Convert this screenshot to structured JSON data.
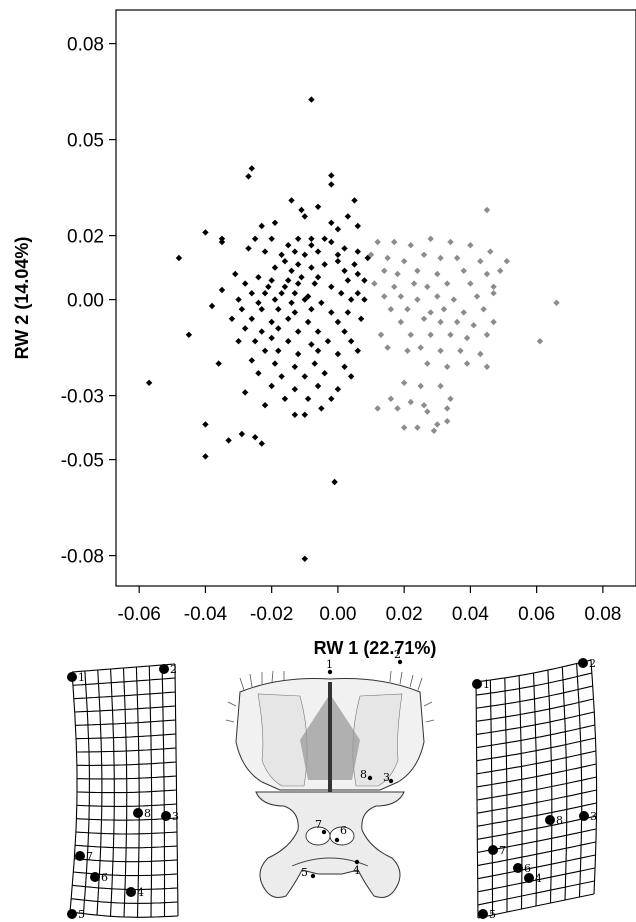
{
  "chart_data": {
    "type": "scatter",
    "xlabel": "RW 1 (22.71%)",
    "ylabel": "RW 2 (14.04%)",
    "xlim": [
      -0.067,
      0.09
    ],
    "ylim": [
      -0.0895,
      0.0905
    ],
    "x_ticks": [
      -0.06,
      -0.04,
      -0.02,
      0.0,
      0.02,
      0.04,
      0.06,
      0.08
    ],
    "x_tick_labels": [
      "-0.06",
      "-0.04",
      "-0.02",
      "0.00",
      "0.02",
      "0.04",
      "0.06",
      "0.08"
    ],
    "y_ticks": [
      0.08,
      0.05,
      0.02,
      0.0,
      -0.03,
      -0.05,
      -0.08
    ],
    "y_tick_labels": [
      "0.08",
      "0.05",
      "0.02",
      "0.00",
      "-0.03",
      "-0.05",
      "-0.08"
    ],
    "grid": false,
    "series": [
      {
        "color": "#000000",
        "marker": "diamond",
        "points": [
          [
            -0.008,
            0.0625
          ],
          [
            -0.026,
            0.041
          ],
          [
            -0.027,
            0.0385
          ],
          [
            -0.002,
            0.0388
          ],
          [
            -0.002,
            0.036
          ],
          [
            -0.014,
            0.031
          ],
          [
            -0.011,
            0.028
          ],
          [
            -0.006,
            0.029
          ],
          [
            -0.01,
            0.026
          ],
          [
            -0.019,
            0.024
          ],
          [
            -0.023,
            0.023
          ],
          [
            -0.002,
            0.024
          ],
          [
            0.0,
            0.022
          ],
          [
            0.005,
            0.031
          ],
          [
            0.003,
            0.026
          ],
          [
            0.006,
            0.023
          ],
          [
            -0.04,
            0.021
          ],
          [
            -0.035,
            0.019
          ],
          [
            -0.035,
            0.018
          ],
          [
            -0.025,
            0.019
          ],
          [
            -0.02,
            0.019
          ],
          [
            -0.012,
            0.019
          ],
          [
            -0.008,
            0.019
          ],
          [
            -0.004,
            0.019
          ],
          [
            -0.015,
            0.017
          ],
          [
            -0.008,
            0.017
          ],
          [
            -0.002,
            0.018
          ],
          [
            0.002,
            0.016
          ],
          [
            0.006,
            0.015
          ],
          [
            -0.027,
            0.016
          ],
          [
            -0.022,
            0.015
          ],
          [
            -0.017,
            0.014
          ],
          [
            -0.013,
            0.015
          ],
          [
            -0.01,
            0.014
          ],
          [
            -0.006,
            0.015
          ],
          [
            0.0,
            0.014
          ],
          [
            -0.048,
            0.013
          ],
          [
            -0.016,
            0.012
          ],
          [
            -0.012,
            0.011
          ],
          [
            -0.004,
            0.011
          ],
          [
            0.0,
            0.012
          ],
          [
            0.005,
            0.011
          ],
          [
            0.009,
            0.013
          ],
          [
            -0.019,
            0.01
          ],
          [
            -0.014,
            0.009
          ],
          [
            -0.008,
            0.01
          ],
          [
            0.002,
            0.009
          ],
          [
            0.006,
            0.008
          ],
          [
            -0.031,
            0.008
          ],
          [
            -0.024,
            0.007
          ],
          [
            -0.02,
            0.006
          ],
          [
            -0.015,
            0.006
          ],
          [
            -0.011,
            0.007
          ],
          [
            -0.006,
            0.007
          ],
          [
            0.003,
            0.006
          ],
          [
            0.008,
            0.006
          ],
          [
            -0.028,
            0.005
          ],
          [
            -0.021,
            0.004
          ],
          [
            -0.016,
            0.004
          ],
          [
            -0.012,
            0.005
          ],
          [
            -0.007,
            0.005
          ],
          [
            -0.002,
            0.004
          ],
          [
            -0.035,
            0.003
          ],
          [
            -0.026,
            0.002
          ],
          [
            -0.022,
            0.002
          ],
          [
            -0.017,
            0.002
          ],
          [
            -0.013,
            0.002
          ],
          [
            -0.009,
            0.001
          ],
          [
            0.001,
            0.002
          ],
          [
            0.006,
            0.002
          ],
          [
            -0.03,
            0.0
          ],
          [
            -0.024,
            -0.001
          ],
          [
            -0.019,
            0.0
          ],
          [
            -0.014,
            -0.001
          ],
          [
            -0.01,
            0.0
          ],
          [
            -0.005,
            -0.001
          ],
          [
            0.004,
            0.0
          ],
          [
            0.008,
            0.0
          ],
          [
            -0.038,
            -0.002
          ],
          [
            -0.029,
            -0.003
          ],
          [
            -0.023,
            -0.003
          ],
          [
            -0.018,
            -0.003
          ],
          [
            -0.013,
            -0.004
          ],
          [
            -0.008,
            -0.003
          ],
          [
            -0.002,
            -0.004
          ],
          [
            0.003,
            -0.004
          ],
          [
            -0.032,
            -0.006
          ],
          [
            -0.026,
            -0.006
          ],
          [
            -0.02,
            -0.007
          ],
          [
            -0.015,
            -0.006
          ],
          [
            -0.009,
            -0.007
          ],
          [
            0.0,
            -0.007
          ],
          [
            0.007,
            -0.006
          ],
          [
            -0.045,
            -0.011
          ],
          [
            -0.028,
            -0.009
          ],
          [
            -0.023,
            -0.01
          ],
          [
            -0.018,
            -0.009
          ],
          [
            -0.012,
            -0.01
          ],
          [
            -0.006,
            -0.01
          ],
          [
            0.002,
            -0.01
          ],
          [
            -0.03,
            -0.013
          ],
          [
            -0.025,
            -0.013
          ],
          [
            -0.02,
            -0.012
          ],
          [
            -0.015,
            -0.013
          ],
          [
            -0.008,
            -0.014
          ],
          [
            -0.003,
            -0.013
          ],
          [
            0.004,
            -0.013
          ],
          [
            -0.022,
            -0.016
          ],
          [
            -0.018,
            -0.016
          ],
          [
            -0.012,
            -0.017
          ],
          [
            -0.006,
            -0.016
          ],
          [
            0.0,
            -0.017
          ],
          [
            0.006,
            -0.016
          ],
          [
            -0.036,
            -0.02
          ],
          [
            -0.026,
            -0.019
          ],
          [
            -0.019,
            -0.02
          ],
          [
            -0.013,
            -0.021
          ],
          [
            -0.007,
            -0.02
          ],
          [
            0.002,
            -0.021
          ],
          [
            -0.024,
            -0.023
          ],
          [
            -0.017,
            -0.024
          ],
          [
            -0.01,
            -0.024
          ],
          [
            -0.004,
            -0.023
          ],
          [
            0.004,
            -0.024
          ],
          [
            -0.057,
            -0.026
          ],
          [
            -0.02,
            -0.027
          ],
          [
            -0.013,
            -0.028
          ],
          [
            -0.006,
            -0.027
          ],
          [
            0.0,
            -0.028
          ],
          [
            -0.028,
            -0.029
          ],
          [
            -0.016,
            -0.031
          ],
          [
            -0.009,
            -0.031
          ],
          [
            -0.002,
            -0.031
          ],
          [
            -0.022,
            -0.033
          ],
          [
            -0.005,
            -0.034
          ],
          [
            -0.013,
            -0.036
          ],
          [
            -0.01,
            -0.036
          ],
          [
            -0.04,
            -0.039
          ],
          [
            -0.029,
            -0.042
          ],
          [
            -0.025,
            -0.043
          ],
          [
            -0.033,
            -0.044
          ],
          [
            -0.04,
            -0.049
          ],
          [
            -0.023,
            -0.045
          ],
          [
            -0.001,
            -0.057
          ],
          [
            -0.01,
            -0.081
          ]
        ]
      },
      {
        "color": "#8c8c8c",
        "marker": "diamond",
        "points": [
          [
            0.045,
            0.028
          ],
          [
            0.012,
            0.018
          ],
          [
            0.017,
            0.018
          ],
          [
            0.022,
            0.017
          ],
          [
            0.028,
            0.019
          ],
          [
            0.034,
            0.018
          ],
          [
            0.04,
            0.017
          ],
          [
            0.046,
            0.015
          ],
          [
            0.01,
            0.014
          ],
          [
            0.015,
            0.013
          ],
          [
            0.02,
            0.012
          ],
          [
            0.026,
            0.014
          ],
          [
            0.031,
            0.013
          ],
          [
            0.036,
            0.013
          ],
          [
            0.043,
            0.012
          ],
          [
            0.051,
            0.012
          ],
          [
            0.014,
            0.009
          ],
          [
            0.018,
            0.008
          ],
          [
            0.024,
            0.009
          ],
          [
            0.03,
            0.008
          ],
          [
            0.038,
            0.009
          ],
          [
            0.045,
            0.008
          ],
          [
            0.049,
            0.009
          ],
          [
            0.011,
            0.005
          ],
          [
            0.017,
            0.004
          ],
          [
            0.023,
            0.005
          ],
          [
            0.027,
            0.004
          ],
          [
            0.033,
            0.005
          ],
          [
            0.04,
            0.005
          ],
          [
            0.047,
            0.004
          ],
          [
            0.014,
            0.001
          ],
          [
            0.019,
            0.001
          ],
          [
            0.024,
            0.0
          ],
          [
            0.03,
            0.001
          ],
          [
            0.035,
            0.0
          ],
          [
            0.042,
            0.001
          ],
          [
            0.047,
            0.002
          ],
          [
            0.066,
            -0.001
          ],
          [
            0.016,
            -0.003
          ],
          [
            0.021,
            -0.003
          ],
          [
            0.028,
            -0.004
          ],
          [
            0.032,
            -0.003
          ],
          [
            0.038,
            -0.004
          ],
          [
            0.044,
            -0.003
          ],
          [
            0.019,
            -0.007
          ],
          [
            0.026,
            -0.006
          ],
          [
            0.031,
            -0.007
          ],
          [
            0.036,
            -0.007
          ],
          [
            0.041,
            -0.008
          ],
          [
            0.047,
            -0.007
          ],
          [
            0.013,
            -0.011
          ],
          [
            0.022,
            -0.011
          ],
          [
            0.028,
            -0.011
          ],
          [
            0.034,
            -0.011
          ],
          [
            0.039,
            -0.012
          ],
          [
            0.045,
            -0.011
          ],
          [
            0.061,
            -0.013
          ],
          [
            0.015,
            -0.015
          ],
          [
            0.021,
            -0.016
          ],
          [
            0.025,
            -0.015
          ],
          [
            0.031,
            -0.016
          ],
          [
            0.037,
            -0.016
          ],
          [
            0.043,
            -0.017
          ],
          [
            0.027,
            -0.02
          ],
          [
            0.033,
            -0.021
          ],
          [
            0.039,
            -0.02
          ],
          [
            0.045,
            -0.021
          ],
          [
            0.02,
            -0.026
          ],
          [
            0.025,
            -0.027
          ],
          [
            0.031,
            -0.027
          ],
          [
            0.016,
            -0.031
          ],
          [
            0.022,
            -0.032
          ],
          [
            0.026,
            -0.033
          ],
          [
            0.034,
            -0.031
          ],
          [
            0.012,
            -0.034
          ],
          [
            0.018,
            -0.034
          ],
          [
            0.027,
            -0.035
          ],
          [
            0.033,
            -0.034
          ],
          [
            0.03,
            -0.039
          ],
          [
            0.033,
            -0.038
          ],
          [
            0.02,
            -0.04
          ],
          [
            0.024,
            -0.04
          ],
          [
            0.029,
            -0.041
          ]
        ]
      }
    ]
  },
  "grids": [
    {
      "labels": [
        "1",
        "2",
        "3",
        "4",
        "5",
        "6",
        "7",
        "8"
      ]
    },
    {
      "labels": [
        "1",
        "2",
        "3",
        "4",
        "5",
        "6",
        "7",
        "8"
      ]
    }
  ],
  "specimen": {
    "labels": [
      "1",
      "2",
      "3",
      "4",
      "5",
      "6",
      "7",
      "8"
    ]
  }
}
